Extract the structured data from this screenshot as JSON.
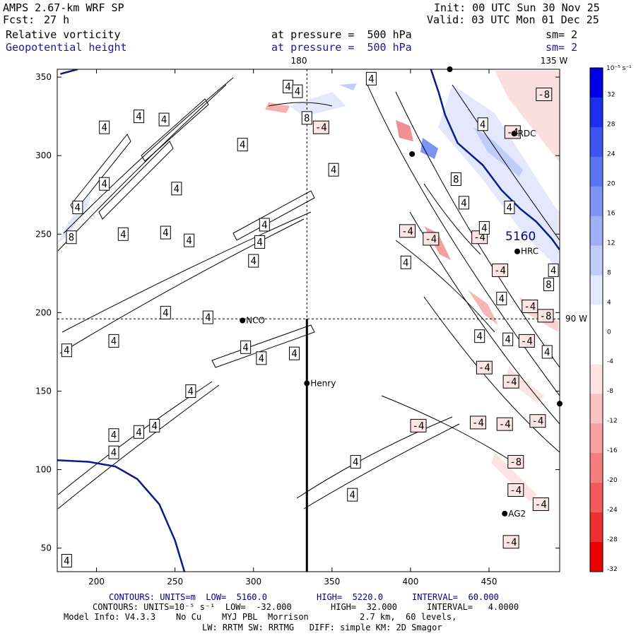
{
  "header": {
    "model": "AMPS 2.67-km WRF SP",
    "fcst_label": "Fcst:",
    "fcst_value": "27 h",
    "init": "Init: 00 UTC Sun 30 Nov 25",
    "valid": "Valid: 03 UTC Mon 01 Dec 25",
    "field1": "Relative vorticity",
    "field1_level": "at pressure =  500 hPa",
    "field1_sm": "sm= 2",
    "field2": "Geopotential height",
    "field2_level": "at pressure =  500 hPa",
    "field2_sm": "sm= 2"
  },
  "map_labels": {
    "meridian_180": "180",
    "meridian_135w": "135 W",
    "meridian_90w": "90 W",
    "height_contour": "5160"
  },
  "stations": [
    {
      "name": "NCO",
      "x": 293,
      "y": 195
    },
    {
      "name": "Henry",
      "x": 334,
      "y": 155
    },
    {
      "name": "AG2",
      "x": 460,
      "y": 72
    },
    {
      "name": "HRC",
      "x": 468,
      "y": 239
    },
    {
      "name": "RDC",
      "x": 466,
      "y": 314
    },
    {
      "name": "",
      "x": 401,
      "y": 301
    },
    {
      "name": "",
      "x": 425,
      "y": 355
    },
    {
      "name": "",
      "x": 495,
      "y": 142
    }
  ],
  "colorbar": {
    "units": "10⁻⁵ s⁻¹",
    "tick_labels": [
      "32",
      "28",
      "24",
      "20",
      "16",
      "12",
      "8",
      "4",
      "0",
      "-4",
      "-8",
      "-12",
      "-16",
      "-20",
      "-24",
      "-28",
      "-32"
    ],
    "colors": [
      "#0000e6",
      "#1a30ee",
      "#3a55f0",
      "#5a74f2",
      "#7d92f5",
      "#a0b0f8",
      "#c2ccfa",
      "#e3e8fd",
      "#ffffff",
      "#ffffff",
      "#fde3e3",
      "#fac2c2",
      "#f8a0a0",
      "#f57d7d",
      "#f25a5a",
      "#f03030",
      "#ee0000"
    ]
  },
  "footer": {
    "line1_a": "CONTOURS: UNITS=m  LOW=  5160.0",
    "line1_b": "HIGH=  5220.0",
    "line1_c": "INTERVAL=  60.000",
    "line2_a": "CONTOURS: UNITS=10⁻⁵ s⁻¹  LOW=  -32.000",
    "line2_b": "HIGH=  32.000",
    "line2_c": "INTERVAL=   4.0000",
    "line3": "Model Info: V4.3.3    No Cu    MYJ PBL  Morrison          2.7 km,  60 levels,",
    "line4": "LW: RRTM SW: RRTMG   DIFF: simple KM: 2D Smagor"
  },
  "chart_data": {
    "type": "contour-map",
    "title": "Relative vorticity / Geopotential height at 500 hPa",
    "xlim": [
      175,
      495
    ],
    "ylim": [
      35,
      355
    ],
    "x_ticks": [
      200,
      250,
      300,
      350,
      400,
      450
    ],
    "y_ticks": [
      50,
      100,
      150,
      200,
      250,
      300,
      350
    ],
    "x_tick_labels": [
      "200",
      "250",
      "300",
      "350",
      "400",
      "450"
    ],
    "y_tick_labels": [
      "50",
      "100",
      "150",
      "200",
      "250",
      "300",
      "350"
    ],
    "vertical_dashed_x": 334,
    "horizontal_dashed_y": 196,
    "cross_section": {
      "x": 334,
      "y_from": 35,
      "y_to": 196
    },
    "height_contours": [
      {
        "level": 5160,
        "points": [
          [
            175,
            106
          ],
          [
            195,
            105
          ],
          [
            212,
            102
          ],
          [
            226,
            94
          ],
          [
            240,
            78
          ],
          [
            250,
            55
          ],
          [
            256,
            35
          ]
        ]
      },
      {
        "level": 5160,
        "points": [
          [
            177,
            352
          ],
          [
            188,
            355
          ]
        ]
      },
      {
        "level": 5160,
        "points": [
          [
            413,
            355
          ],
          [
            418,
            340
          ],
          [
            422,
            326
          ],
          [
            430,
            308
          ],
          [
            446,
            294
          ],
          [
            458,
            278
          ],
          [
            470,
            266
          ],
          [
            480,
            258
          ],
          [
            490,
            247
          ],
          [
            495,
            240
          ]
        ]
      }
    ],
    "vorticity_labels": [
      {
        "v": "4",
        "x": 181,
        "y": 42
      },
      {
        "v": "4",
        "x": 181,
        "y": 176
      },
      {
        "v": "4",
        "x": 188,
        "y": 267
      },
      {
        "v": "8",
        "x": 184,
        "y": 248
      },
      {
        "v": "4",
        "x": 205,
        "y": 282
      },
      {
        "v": "4",
        "x": 205,
        "y": 318
      },
      {
        "v": "4",
        "x": 211,
        "y": 182
      },
      {
        "v": "4",
        "x": 217,
        "y": 250
      },
      {
        "v": "4",
        "x": 211,
        "y": 111
      },
      {
        "v": "4",
        "x": 211,
        "y": 122
      },
      {
        "v": "4",
        "x": 227,
        "y": 325
      },
      {
        "v": "4",
        "x": 227,
        "y": 124
      },
      {
        "v": "4",
        "x": 237,
        "y": 128
      },
      {
        "v": "4",
        "x": 243,
        "y": 323
      },
      {
        "v": "4",
        "x": 244,
        "y": 251
      },
      {
        "v": "4",
        "x": 244,
        "y": 200
      },
      {
        "v": "4",
        "x": 251,
        "y": 279
      },
      {
        "v": "4",
        "x": 271,
        "y": 197
      },
      {
        "v": "4",
        "x": 260,
        "y": 150
      },
      {
        "v": "4",
        "x": 259,
        "y": 246
      },
      {
        "v": "4",
        "x": 305,
        "y": 171
      },
      {
        "v": "4",
        "x": 295,
        "y": 178
      },
      {
        "v": "4",
        "x": 304,
        "y": 245
      },
      {
        "v": "4",
        "x": 300,
        "y": 233
      },
      {
        "v": "4",
        "x": 307,
        "y": 256
      },
      {
        "v": "4",
        "x": 293,
        "y": 307
      },
      {
        "v": "4",
        "x": 322,
        "y": 344
      },
      {
        "v": "4",
        "x": 328,
        "y": 341
      },
      {
        "v": "4",
        "x": 326,
        "y": 174
      },
      {
        "v": "8",
        "x": 334,
        "y": 324
      },
      {
        "v": "-4",
        "x": 343,
        "y": 318
      },
      {
        "v": "4",
        "x": 351,
        "y": 291
      },
      {
        "v": "4",
        "x": 375,
        "y": 349
      },
      {
        "v": "4",
        "x": 365,
        "y": 105
      },
      {
        "v": "4",
        "x": 363,
        "y": 84
      },
      {
        "v": "-4",
        "x": 398,
        "y": 252
      },
      {
        "v": "-4",
        "x": 413,
        "y": 247
      },
      {
        "v": "-4",
        "x": 444,
        "y": 248
      },
      {
        "v": "-4",
        "x": 405,
        "y": 128
      },
      {
        "v": "4",
        "x": 397,
        "y": 232
      },
      {
        "v": "4",
        "x": 446,
        "y": 320
      },
      {
        "v": "8",
        "x": 429,
        "y": 285
      },
      {
        "v": "4",
        "x": 434,
        "y": 270
      },
      {
        "v": "4",
        "x": 463,
        "y": 267
      },
      {
        "v": "4",
        "x": 447,
        "y": 254
      },
      {
        "v": "4",
        "x": 491,
        "y": 227
      },
      {
        "v": "8",
        "x": 488,
        "y": 218
      },
      {
        "v": "-8",
        "x": 485,
        "y": 339
      },
      {
        "v": "-4",
        "x": 465,
        "y": 315
      },
      {
        "v": "-4",
        "x": 457,
        "y": 227
      },
      {
        "v": "-4",
        "x": 476,
        "y": 204
      },
      {
        "v": "4",
        "x": 458,
        "y": 209
      },
      {
        "v": "4",
        "x": 444,
        "y": 185
      },
      {
        "v": "4",
        "x": 462,
        "y": 183
      },
      {
        "v": "-4",
        "x": 474,
        "y": 182
      },
      {
        "v": "-8",
        "x": 486,
        "y": 198
      },
      {
        "v": "4",
        "x": 487,
        "y": 175
      },
      {
        "v": "-4",
        "x": 447,
        "y": 165
      },
      {
        "v": "-4",
        "x": 464,
        "y": 156
      },
      {
        "v": "-4",
        "x": 443,
        "y": 130
      },
      {
        "v": "-4",
        "x": 460,
        "y": 129
      },
      {
        "v": "-4",
        "x": 481,
        "y": 131
      },
      {
        "v": "-8",
        "x": 467,
        "y": 105
      },
      {
        "v": "-4",
        "x": 467,
        "y": 87
      },
      {
        "v": "-4",
        "x": 483,
        "y": 78
      },
      {
        "v": "-4",
        "x": 464,
        "y": 54
      }
    ]
  }
}
